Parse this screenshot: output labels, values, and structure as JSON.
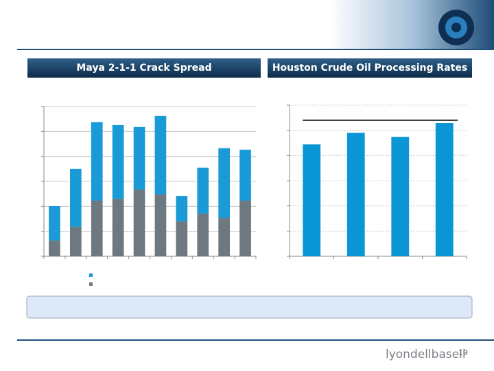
{
  "chart_data": [
    {
      "type": "stacked-bar",
      "title": "Maya 2-1-1 Crack Spread",
      "categories": [
        null,
        null,
        null,
        null,
        null,
        null,
        null,
        null,
        null,
        null
      ],
      "series": [
        {
          "color": "#6d7880",
          "values": [
            0.63,
            1.18,
            2.23,
            2.29,
            2.67,
            2.48,
            1.4,
            1.71,
            1.54,
            2.23
          ]
        },
        {
          "color": "#1a9ad6",
          "values": [
            1.38,
            2.32,
            3.14,
            2.97,
            2.51,
            3.14,
            1.02,
            1.84,
            2.79,
            2.04
          ]
        }
      ],
      "ylim": [
        0,
        6
      ],
      "yticks": [
        0,
        1,
        2,
        3,
        4,
        5,
        6
      ],
      "grid": true
    },
    {
      "type": "bar",
      "title": "Houston Crude Oil Processing Rates",
      "categories": [
        null,
        null,
        null,
        null
      ],
      "values": [
        4.44,
        4.9,
        4.74,
        5.29
      ],
      "color": "#0a96d4",
      "reference_line": 5.4,
      "ylim": [
        0,
        6
      ],
      "yticks": [
        0,
        1,
        2,
        3,
        4,
        5,
        6
      ],
      "grid": true
    }
  ],
  "page_number": "19",
  "logo": "lyondellbasell"
}
